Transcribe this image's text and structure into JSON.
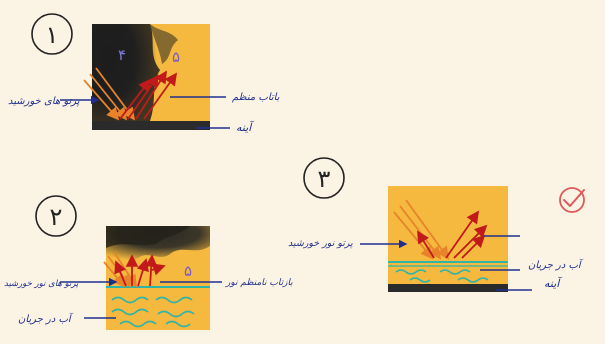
{
  "diagrams": [
    {
      "number": "۱",
      "labels": {
        "sun_ray": "پرتو های خورشید",
        "light_beam": "باتاب منظم",
        "mirror": "آینه"
      },
      "marks": [
        "۴",
        "۵"
      ]
    },
    {
      "number": "۲",
      "labels": {
        "sun_ray": "پرتو های نور خورشید",
        "light_beam": "بازتاب نامنظم نور",
        "running_water": "آب در جریان"
      },
      "marks": [
        "۵"
      ]
    },
    {
      "number": "۳",
      "labels": {
        "sun_ray": "پرتو نور خورشید",
        "running_water": "آب در جریان",
        "mirror": "آینه"
      }
    }
  ],
  "colors": {
    "background": "#fbf3e4",
    "panel": "#f4b93e",
    "ray": "#e8832a",
    "reflection": "#c21a1a",
    "ink": "#1f2f8f",
    "mirror": "#2b2b2b",
    "water": "#2fb4a8",
    "check": "#e05a5a"
  },
  "check_icon": "check-circle-icon"
}
